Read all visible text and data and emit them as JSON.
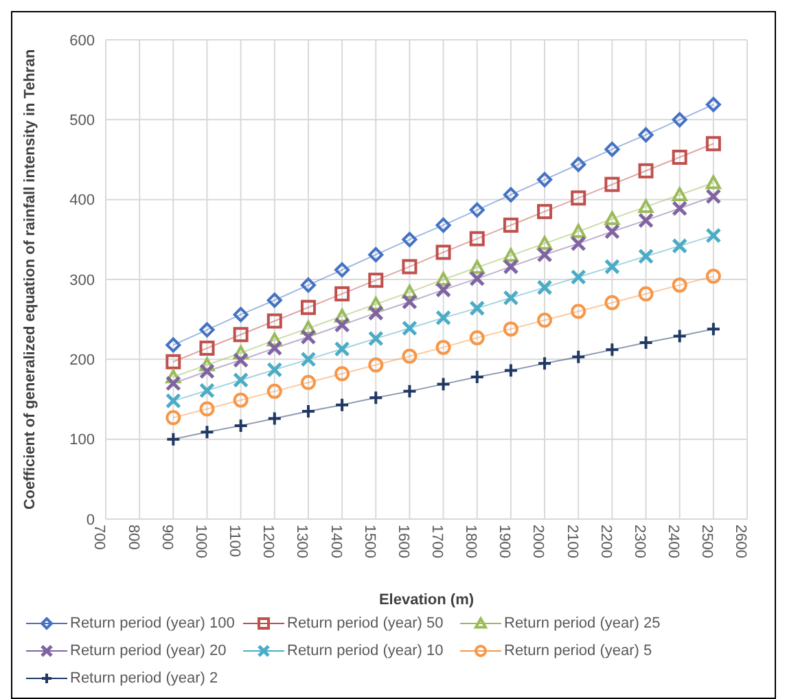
{
  "chart_data": {
    "type": "line",
    "xlabel": "Elevation (m)",
    "ylabel": "Coefficient of generalized equation of rainfall intensity in Tehran",
    "x": [
      900,
      1000,
      1100,
      1200,
      1300,
      1400,
      1500,
      1600,
      1700,
      1800,
      1900,
      2000,
      2100,
      2200,
      2300,
      2400,
      2500
    ],
    "xlim": [
      700,
      2600
    ],
    "xticks": [
      700,
      800,
      900,
      1000,
      1100,
      1200,
      1300,
      1400,
      1500,
      1600,
      1700,
      1800,
      1900,
      2000,
      2100,
      2200,
      2300,
      2400,
      2500,
      2600
    ],
    "ylim": [
      0,
      600
    ],
    "yticks": [
      0,
      100,
      200,
      300,
      400,
      500,
      600
    ],
    "grid": true,
    "legend": "bottom",
    "series": [
      {
        "name": "Return period (year) 100",
        "color": "#4472c4",
        "marker": "diamond",
        "values": [
          218,
          237,
          256,
          274,
          293,
          312,
          331,
          350,
          368,
          387,
          406,
          425,
          444,
          463,
          481,
          500,
          519
        ]
      },
      {
        "name": "Return period (year) 50",
        "color": "#c0504d",
        "marker": "square",
        "values": [
          197,
          214,
          231,
          248,
          265,
          282,
          299,
          316,
          334,
          351,
          368,
          385,
          402,
          419,
          436,
          453,
          470
        ]
      },
      {
        "name": "Return period (year) 25",
        "color": "#9bbb59",
        "marker": "triangle",
        "values": [
          178,
          193,
          208,
          224,
          239,
          254,
          269,
          284,
          300,
          315,
          330,
          345,
          360,
          376,
          391,
          406,
          421
        ]
      },
      {
        "name": "Return period (year) 20",
        "color": "#8064a2",
        "marker": "cross",
        "values": [
          170,
          185,
          199,
          214,
          228,
          243,
          258,
          272,
          287,
          301,
          316,
          331,
          345,
          360,
          374,
          389,
          404
        ]
      },
      {
        "name": "Return period (year) 10",
        "color": "#4bacc6",
        "marker": "cross",
        "values": [
          148,
          161,
          174,
          187,
          200,
          213,
          226,
          239,
          252,
          264,
          277,
          290,
          303,
          316,
          329,
          342,
          355
        ]
      },
      {
        "name": "Return period (year) 5",
        "color": "#f79646",
        "marker": "circle",
        "values": [
          127,
          138,
          149,
          160,
          171,
          182,
          193,
          204,
          215,
          227,
          238,
          249,
          260,
          271,
          282,
          293,
          304
        ]
      },
      {
        "name": "Return period (year) 2",
        "color": "#1f3864",
        "marker": "plus",
        "values": [
          100,
          109,
          117,
          126,
          135,
          143,
          152,
          160,
          169,
          178,
          186,
          195,
          203,
          212,
          221,
          229,
          238
        ]
      }
    ]
  }
}
